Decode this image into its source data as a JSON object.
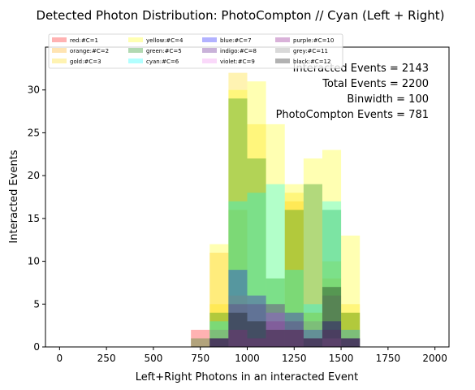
{
  "chart_data": {
    "type": "bar",
    "stacked": false,
    "title": "Detected Photon Distribution: PhotoCompton // Cyan (Left + Right)",
    "xlabel": "Left+Right Photons in an interacted Event",
    "ylabel": "Interacted Events",
    "xlim": [
      -75,
      2075
    ],
    "ylim": [
      0,
      35
    ],
    "x_ticks": [
      0,
      250,
      500,
      750,
      1000,
      1250,
      1500,
      1750,
      2000
    ],
    "y_ticks": [
      0,
      5,
      10,
      15,
      20,
      25,
      30
    ],
    "bin_width": 100,
    "bin_starts": [
      700,
      800,
      900,
      1000,
      1100,
      1200,
      1300,
      1400,
      1500
    ],
    "legend_position": "top",
    "series": [
      {
        "name": "red:#C=1",
        "color": "#ff0000",
        "values": [
          2,
          1,
          0,
          0,
          0,
          0,
          0,
          0,
          0
        ]
      },
      {
        "name": "orange:#C=2",
        "color": "#ffa500",
        "values": [
          0,
          11,
          16,
          3,
          2,
          17,
          4,
          8,
          4
        ]
      },
      {
        "name": "gold:#C=3",
        "color": "#ffd700",
        "values": [
          0,
          5,
          32,
          26,
          8,
          18,
          4,
          10,
          5
        ]
      },
      {
        "name": "yellow:#C=4",
        "color": "#ffff00",
        "values": [
          0,
          12,
          30,
          31,
          26,
          19,
          22,
          23,
          13
        ]
      },
      {
        "name": "green:#C=5",
        "color": "#008000",
        "values": [
          1,
          4,
          29,
          22,
          8,
          16,
          19,
          16,
          4
        ]
      },
      {
        "name": "cyan:#C=6",
        "color": "#00ffff",
        "values": [
          0,
          3,
          17,
          18,
          19,
          9,
          5,
          17,
          2
        ]
      },
      {
        "name": "blue:#C=7",
        "color": "#0000ff",
        "values": [
          0,
          1,
          9,
          6,
          4,
          4,
          2,
          3,
          1
        ]
      },
      {
        "name": "indigo:#C=8",
        "color": "#4b0082",
        "values": [
          0,
          1,
          5,
          5,
          5,
          3,
          1,
          3,
          1
        ]
      },
      {
        "name": "violet:#C=9",
        "color": "#ee82ee",
        "values": [
          0,
          0,
          2,
          1,
          4,
          2,
          0,
          1,
          0
        ]
      },
      {
        "name": "purple:#C=10",
        "color": "#800080",
        "values": [
          0,
          1,
          2,
          1,
          3,
          2,
          1,
          2,
          1
        ]
      },
      {
        "name": "grey:#C=11",
        "color": "#808080",
        "values": [
          0,
          2,
          6,
          6,
          5,
          4,
          3,
          6,
          2
        ]
      },
      {
        "name": "black:#C=12",
        "color": "#000000",
        "values": [
          0,
          1,
          4,
          3,
          2,
          2,
          1,
          7,
          1
        ]
      }
    ],
    "annotations": [
      "Interacted Events = 2143",
      "Total Events = 2200",
      "Binwidth = 100",
      "PhotoCompton Events = 781"
    ]
  }
}
